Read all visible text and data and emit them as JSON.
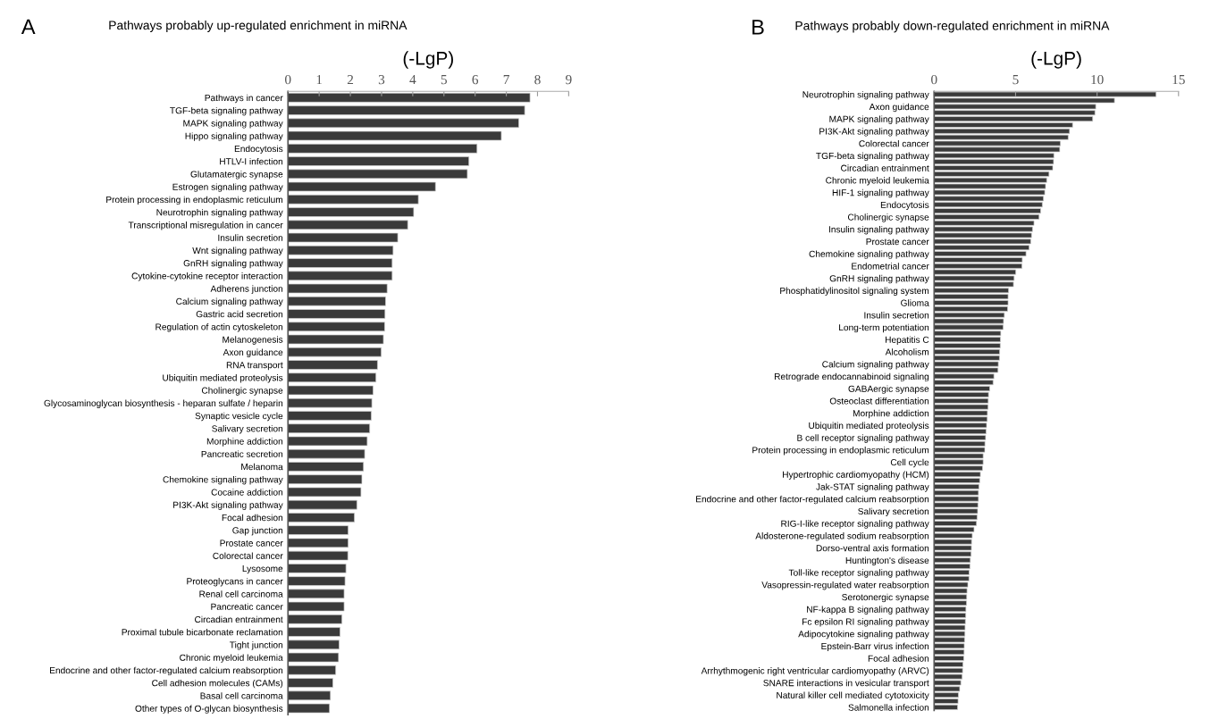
{
  "chart_data": [
    {
      "type": "bar",
      "orientation": "horizontal",
      "title": "Pathways probably up-regulated enrichment in miRNA",
      "xlabel": "(-LgP)",
      "annotations": [
        "A"
      ],
      "color": "#3a3a3a",
      "xlim": [
        0,
        9
      ],
      "xticks": [
        0,
        1,
        2,
        3,
        4,
        5,
        6,
        7,
        8,
        9
      ],
      "grid": false,
      "legend": false,
      "categories": [
        "Pathways in cancer",
        "TGF-beta signaling pathway",
        "MAPK signaling pathway",
        "Hippo signaling pathway",
        "Endocytosis",
        "HTLV-I infection",
        "Glutamatergic synapse",
        "Estrogen signaling pathway",
        "Protein processing in endoplasmic reticulum",
        "Neurotrophin signaling pathway",
        "Transcriptional misregulation in cancer",
        "Insulin secretion",
        "Wnt signaling pathway",
        "GnRH signaling pathway",
        "Cytokine-cytokine receptor interaction",
        "Adherens junction",
        "Calcium signaling pathway",
        "Gastric acid secretion",
        "Regulation of actin cytoskeleton",
        "Melanogenesis",
        "Axon guidance",
        "RNA transport",
        "Ubiquitin mediated proteolysis",
        "Cholinergic synapse",
        "Glycosaminoglycan biosynthesis - heparan sulfate / heparin",
        "Synaptic vesicle cycle",
        "Salivary secretion",
        "Morphine addiction",
        "Pancreatic secretion",
        "Melanoma",
        "Chemokine signaling pathway",
        "Cocaine addiction",
        "PI3K-Akt signaling pathway",
        "Focal adhesion",
        "Gap junction",
        "Prostate cancer",
        "Colorectal cancer",
        "Lysosome",
        "Proteoglycans in cancer",
        "Renal cell carcinoma",
        "Pancreatic cancer",
        "Circadian entrainment",
        "Proximal tubule bicarbonate reclamation",
        "Tight junction",
        "Chronic myeloid leukemia",
        "Endocrine and other factor-regulated calcium reabsorption",
        "Cell adhesion molecules (CAMs)",
        "Basal cell carcinoma",
        "Other types of O-glycan biosynthesis"
      ],
      "values": [
        7.76,
        7.59,
        7.4,
        6.84,
        6.06,
        5.8,
        5.75,
        4.73,
        4.18,
        4.03,
        3.84,
        3.52,
        3.37,
        3.34,
        3.34,
        3.18,
        3.13,
        3.11,
        3.1,
        3.06,
        2.99,
        2.87,
        2.82,
        2.73,
        2.69,
        2.67,
        2.62,
        2.54,
        2.46,
        2.42,
        2.37,
        2.34,
        2.21,
        2.13,
        1.93,
        1.93,
        1.92,
        1.86,
        1.83,
        1.8,
        1.8,
        1.73,
        1.67,
        1.64,
        1.62,
        1.53,
        1.44,
        1.36,
        1.33
      ]
    },
    {
      "type": "bar",
      "orientation": "horizontal",
      "title": "Pathways probably down-regulated enrichment in miRNA",
      "xlabel": "(-LgP)",
      "annotations": [
        "B"
      ],
      "color": "#3a3a3a",
      "xlim": [
        0,
        15
      ],
      "xticks": [
        0,
        5,
        10,
        15
      ],
      "grid": false,
      "legend": false,
      "categories": [
        "Neurotrophin signaling pathway",
        null,
        "Axon guidance",
        null,
        "MAPK signaling pathway",
        null,
        "PI3K-Akt signaling pathway",
        null,
        "Colorectal cancer",
        null,
        "TGF-beta signaling pathway",
        null,
        "Circadian entrainment",
        null,
        "Chronic myeloid leukemia",
        null,
        "HIF-1 signaling pathway",
        null,
        "Endocytosis",
        null,
        "Cholinergic synapse",
        null,
        "Insulin signaling pathway",
        null,
        "Prostate cancer",
        null,
        "Chemokine signaling pathway",
        null,
        "Endometrial cancer",
        null,
        "GnRH signaling pathway",
        null,
        "Phosphatidylinositol signaling system",
        null,
        "Glioma",
        null,
        "Insulin secretion",
        null,
        "Long-term potentiation",
        null,
        "Hepatitis C",
        null,
        "Alcoholism",
        null,
        "Calcium signaling pathway",
        null,
        "Retrograde endocannabinoid signaling",
        null,
        "GABAergic synapse",
        null,
        "Osteoclast differentiation",
        null,
        "Morphine addiction",
        null,
        "Ubiquitin mediated proteolysis",
        null,
        "B cell receptor signaling pathway",
        null,
        "Protein processing in endoplasmic reticulum",
        null,
        "Cell cycle",
        null,
        "Hypertrophic cardiomyopathy (HCM)",
        null,
        "Jak-STAT signaling pathway",
        null,
        "Endocrine and other factor-regulated calcium reabsorption",
        null,
        "Salivary secretion",
        null,
        "RIG-I-like receptor signaling pathway",
        null,
        "Aldosterone-regulated sodium reabsorption",
        null,
        "Dorso-ventral axis formation",
        null,
        "Huntington's disease",
        null,
        "Toll-like receptor signaling pathway",
        null,
        "Vasopressin-regulated water reabsorption",
        null,
        "Serotonergic synapse",
        null,
        "NF-kappa B signaling pathway",
        null,
        "Fc epsilon RI signaling pathway",
        null,
        "Adipocytokine signaling pathway",
        null,
        "Epstein-Barr virus infection",
        null,
        "Focal adhesion",
        null,
        "Arrhythmogenic right ventricular cardiomyopathy (ARVC)",
        null,
        "SNARE interactions in vesicular transport",
        null,
        "Natural killer cell mediated cytotoxicity",
        null,
        "Salmonella infection"
      ],
      "values": [
        13.62,
        11.07,
        9.92,
        9.87,
        9.73,
        8.5,
        8.31,
        8.23,
        7.75,
        7.71,
        7.35,
        7.33,
        7.28,
        7.05,
        6.91,
        6.84,
        6.79,
        6.71,
        6.64,
        6.54,
        6.44,
        6.13,
        6.04,
        5.98,
        5.93,
        5.83,
        5.64,
        5.41,
        5.39,
        5.01,
        4.91,
        4.87,
        4.57,
        4.54,
        4.54,
        4.51,
        4.31,
        4.26,
        4.24,
        4.09,
        4.07,
        4.06,
        4.02,
        4.01,
        3.94,
        3.92,
        3.67,
        3.62,
        3.41,
        3.34,
        3.32,
        3.31,
        3.27,
        3.26,
        3.22,
        3.19,
        3.16,
        3.12,
        3.11,
        3.01,
        3.01,
        2.97,
        2.84,
        2.8,
        2.75,
        2.72,
        2.72,
        2.69,
        2.67,
        2.64,
        2.6,
        2.45,
        2.34,
        2.3,
        2.29,
        2.27,
        2.22,
        2.2,
        2.15,
        2.14,
        2.07,
        2.02,
        2.0,
        1.99,
        1.95,
        1.94,
        1.92,
        1.9,
        1.89,
        1.87,
        1.85,
        1.84,
        1.82,
        1.77,
        1.75,
        1.72,
        1.64,
        1.57,
        1.49,
        1.47,
        1.44
      ]
    }
  ]
}
